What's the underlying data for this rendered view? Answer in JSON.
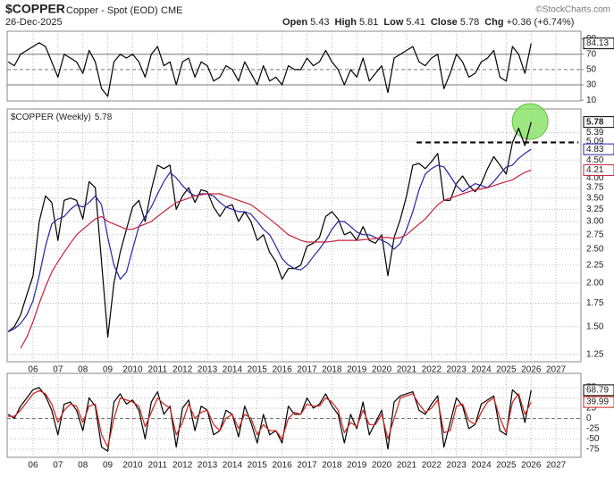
{
  "header": {
    "symbol": "$COPPER",
    "name": "Copper - Spot (EOD)",
    "exchange": "CME",
    "date": "26-Dec-2025",
    "quote": [
      {
        "label": "Open",
        "value": 5.43
      },
      {
        "label": "High",
        "value": 5.81
      },
      {
        "label": "Low",
        "value": 5.41
      },
      {
        "label": "Close",
        "value": 5.78
      },
      {
        "label": "Chg",
        "value": "+0.36 (+6.74%)"
      }
    ],
    "credit": "©StockCharts.com"
  },
  "chart_data": [
    {
      "type": "line",
      "x": [
        2005,
        2005.25,
        2005.5,
        2005.75,
        2006,
        2006.25,
        2006.5,
        2006.75,
        2007,
        2007.25,
        2007.5,
        2007.75,
        2008,
        2008.25,
        2008.5,
        2008.75,
        2009,
        2009.25,
        2009.5,
        2009.75,
        2010,
        2010.25,
        2010.5,
        2010.75,
        2011,
        2011.25,
        2011.5,
        2011.75,
        2012,
        2012.25,
        2012.5,
        2012.75,
        2013,
        2013.25,
        2013.5,
        2013.75,
        2014,
        2014.25,
        2014.5,
        2014.75,
        2015,
        2015.25,
        2015.5,
        2015.75,
        2016,
        2016.25,
        2016.5,
        2016.75,
        2017,
        2017.25,
        2017.5,
        2017.75,
        2018,
        2018.25,
        2018.5,
        2018.75,
        2019,
        2019.25,
        2019.5,
        2019.75,
        2020,
        2020.25,
        2020.5,
        2020.75,
        2021,
        2021.25,
        2021.5,
        2021.75,
        2022,
        2022.25,
        2022.5,
        2022.75,
        2023,
        2023.25,
        2023.5,
        2023.75,
        2024,
        2024.25,
        2024.5,
        2024.75,
        2025,
        2025.25,
        2025.5,
        2025.75,
        2026
      ],
      "series": [
        {
          "color": "#000000",
          "values": [
            60,
            55,
            70,
            75,
            80,
            85,
            80,
            60,
            40,
            70,
            65,
            60,
            45,
            75,
            60,
            25,
            15,
            60,
            70,
            65,
            70,
            60,
            40,
            70,
            80,
            55,
            60,
            30,
            60,
            65,
            40,
            60,
            55,
            35,
            40,
            55,
            50,
            35,
            60,
            45,
            30,
            55,
            35,
            40,
            30,
            55,
            50,
            50,
            65,
            55,
            60,
            75,
            60,
            50,
            30,
            50,
            40,
            65,
            35,
            45,
            55,
            20,
            65,
            70,
            75,
            80,
            60,
            55,
            65,
            70,
            25,
            45,
            70,
            60,
            40,
            45,
            60,
            65,
            75,
            40,
            35,
            80,
            70,
            45,
            84.13
          ]
        }
      ],
      "xlim": [
        2004.96,
        2028.0
      ],
      "xticks": [
        2006,
        2007,
        2008,
        2009,
        2010,
        2011,
        2012,
        2013,
        2014,
        2015,
        2016,
        2017,
        2018,
        2019,
        2020,
        2021,
        2022,
        2023,
        2024,
        2025,
        2026,
        2027
      ],
      "xtick_labels": false,
      "ylim": [
        9,
        100
      ],
      "yticks": [
        90,
        70,
        50,
        30,
        10
      ],
      "grid": false,
      "ref_lines": [
        {
          "value": 70,
          "style": "solid"
        },
        {
          "value": 50,
          "style": "dashed"
        },
        {
          "value": 30,
          "style": "solid"
        }
      ]
    },
    {
      "type": "line",
      "legend": "$COPPER (Weekly)",
      "log_scale": true,
      "x": [
        2005,
        2005.25,
        2005.5,
        2005.75,
        2006,
        2006.25,
        2006.5,
        2006.75,
        2007,
        2007.25,
        2007.5,
        2007.75,
        2008,
        2008.25,
        2008.5,
        2008.75,
        2009,
        2009.25,
        2009.5,
        2009.75,
        2010,
        2010.25,
        2010.5,
        2010.75,
        2011,
        2011.25,
        2011.5,
        2011.75,
        2012,
        2012.25,
        2012.5,
        2012.75,
        2013,
        2013.25,
        2013.5,
        2013.75,
        2014,
        2014.25,
        2014.5,
        2014.75,
        2015,
        2015.25,
        2015.5,
        2015.75,
        2016,
        2016.25,
        2016.5,
        2016.75,
        2017,
        2017.25,
        2017.5,
        2017.75,
        2018,
        2018.25,
        2018.5,
        2018.75,
        2019,
        2019.25,
        2019.5,
        2019.75,
        2020,
        2020.25,
        2020.5,
        2020.75,
        2021,
        2021.25,
        2021.5,
        2021.75,
        2022,
        2022.25,
        2022.5,
        2022.75,
        2023,
        2023.25,
        2023.5,
        2023.75,
        2024,
        2024.25,
        2024.5,
        2024.75,
        2025,
        2025.25,
        2025.5,
        2025.75,
        2026
      ],
      "series": [
        {
          "color": "#000000",
          "values": [
            1.45,
            1.5,
            1.62,
            1.85,
            2.1,
            3.0,
            3.55,
            3.4,
            2.65,
            3.45,
            3.5,
            3.45,
            3.05,
            3.9,
            3.75,
            2.3,
            1.4,
            2.0,
            2.45,
            2.85,
            3.3,
            3.45,
            3.0,
            3.7,
            4.35,
            4.25,
            4.35,
            3.25,
            3.55,
            3.75,
            3.4,
            3.7,
            3.65,
            3.3,
            3.1,
            3.3,
            3.35,
            3.0,
            3.2,
            3.0,
            2.65,
            2.75,
            2.45,
            2.3,
            2.05,
            2.2,
            2.2,
            2.25,
            2.55,
            2.6,
            2.7,
            3.1,
            3.2,
            3.05,
            2.75,
            2.8,
            2.65,
            2.9,
            2.65,
            2.6,
            2.75,
            2.1,
            2.7,
            3.05,
            3.55,
            4.35,
            4.4,
            4.25,
            4.45,
            4.7,
            3.45,
            3.45,
            3.85,
            4.05,
            3.8,
            3.65,
            3.85,
            4.25,
            4.6,
            4.35,
            4.1,
            5.05,
            5.55,
            4.95,
            5.78
          ]
        },
        {
          "color": "#2323a8",
          "values": [
            1.45,
            1.48,
            1.53,
            1.62,
            1.78,
            2.1,
            2.55,
            2.95,
            3.05,
            3.1,
            3.25,
            3.35,
            3.3,
            3.4,
            3.55,
            3.35,
            2.7,
            2.25,
            2.05,
            2.15,
            2.5,
            2.9,
            3.1,
            3.3,
            3.6,
            3.9,
            4.15,
            4.0,
            3.8,
            3.65,
            3.55,
            3.6,
            3.6,
            3.55,
            3.4,
            3.3,
            3.25,
            3.2,
            3.2,
            3.15,
            3.0,
            2.85,
            2.75,
            2.55,
            2.35,
            2.25,
            2.2,
            2.18,
            2.25,
            2.38,
            2.5,
            2.65,
            2.85,
            3.0,
            3.0,
            2.9,
            2.8,
            2.75,
            2.75,
            2.7,
            2.65,
            2.6,
            2.5,
            2.6,
            2.85,
            3.2,
            3.7,
            4.1,
            4.25,
            4.35,
            4.3,
            4.05,
            3.8,
            3.65,
            3.75,
            3.85,
            3.8,
            3.75,
            3.9,
            4.1,
            4.3,
            4.35,
            4.55,
            4.7,
            4.83
          ]
        },
        {
          "color": "#c8203a",
          "values": [
            null,
            null,
            1.3,
            1.4,
            1.55,
            1.75,
            1.95,
            2.15,
            2.3,
            2.45,
            2.6,
            2.75,
            2.85,
            2.95,
            3.05,
            3.1,
            3.0,
            2.95,
            2.9,
            2.85,
            2.85,
            2.9,
            2.95,
            3.0,
            3.1,
            3.2,
            3.3,
            3.4,
            3.45,
            3.5,
            3.55,
            3.58,
            3.6,
            3.6,
            3.6,
            3.55,
            3.5,
            3.45,
            3.4,
            3.35,
            3.25,
            3.15,
            3.05,
            2.95,
            2.85,
            2.75,
            2.7,
            2.65,
            2.62,
            2.62,
            2.62,
            2.62,
            2.63,
            2.65,
            2.65,
            2.65,
            2.65,
            2.66,
            2.67,
            2.68,
            2.7,
            2.7,
            2.68,
            2.7,
            2.75,
            2.85,
            2.95,
            3.05,
            3.2,
            3.35,
            3.45,
            3.5,
            3.55,
            3.6,
            3.65,
            3.7,
            3.72,
            3.75,
            3.8,
            3.85,
            3.9,
            3.95,
            4.05,
            4.15,
            4.21
          ]
        }
      ],
      "xlim": [
        2004.96,
        2028.0
      ],
      "xticks": [
        {
          "value": 2006,
          "label": "06"
        },
        {
          "value": 2007,
          "label": "07"
        },
        {
          "value": 2008,
          "label": "08"
        },
        {
          "value": 2009,
          "label": "09"
        },
        2010,
        2011,
        2012,
        2013,
        2014,
        2015,
        2016,
        2017,
        2018,
        2019,
        2020,
        2021,
        2022,
        2023,
        2024,
        2025,
        2026,
        2027
      ],
      "ylim": [
        1.19,
        6.3
      ],
      "yticks": [
        5.39,
        5.09,
        {
          "value": 4.5,
          "label": "4.50"
        },
        {
          "value": 4.0,
          "label": "4.00"
        },
        3.75,
        {
          "value": 3.5,
          "label": "3.50"
        },
        3.25,
        {
          "value": 3.0,
          "label": "3.00"
        },
        2.75,
        {
          "value": 2.5,
          "label": "2.50"
        },
        2.25,
        {
          "value": 2.0,
          "label": "2.00"
        },
        1.75,
        {
          "value": 1.5,
          "label": "1.50"
        },
        1.25
      ],
      "grid": true,
      "level": {
        "value": 5.05,
        "x": [
          2021.4,
          2027.9
        ]
      },
      "highlight": {
        "x": 2025.96,
        "y": 5.8,
        "color": "#7ee05a"
      }
    },
    {
      "type": "line",
      "x": [
        2005,
        2005.25,
        2005.5,
        2005.75,
        2006,
        2006.25,
        2006.5,
        2006.75,
        2007,
        2007.25,
        2007.5,
        2007.75,
        2008,
        2008.25,
        2008.5,
        2008.75,
        2009,
        2009.25,
        2009.5,
        2009.75,
        2010,
        2010.25,
        2010.5,
        2010.75,
        2011,
        2011.25,
        2011.5,
        2011.75,
        2012,
        2012.25,
        2012.5,
        2012.75,
        2013,
        2013.25,
        2013.5,
        2013.75,
        2014,
        2014.25,
        2014.5,
        2014.75,
        2015,
        2015.25,
        2015.5,
        2015.75,
        2016,
        2016.25,
        2016.5,
        2016.75,
        2017,
        2017.25,
        2017.5,
        2017.75,
        2018,
        2018.25,
        2018.5,
        2018.75,
        2019,
        2019.25,
        2019.5,
        2019.75,
        2020,
        2020.25,
        2020.5,
        2020.75,
        2021,
        2021.25,
        2021.5,
        2021.75,
        2022,
        2022.25,
        2022.5,
        2022.75,
        2023,
        2023.25,
        2023.5,
        2023.75,
        2024,
        2024.25,
        2024.5,
        2024.75,
        2025,
        2025.25,
        2025.5,
        2025.75,
        2026
      ],
      "series": [
        {
          "color": "#000000",
          "values": [
            10,
            0,
            30,
            50,
            70,
            75,
            55,
            20,
            -40,
            35,
            40,
            20,
            -30,
            50,
            30,
            -70,
            -80,
            40,
            60,
            35,
            45,
            20,
            -50,
            40,
            65,
            10,
            30,
            -70,
            25,
            45,
            -30,
            30,
            20,
            -40,
            -30,
            20,
            10,
            -45,
            30,
            -10,
            -60,
            10,
            -40,
            -30,
            -60,
            30,
            10,
            10,
            50,
            25,
            35,
            60,
            30,
            10,
            -60,
            10,
            -25,
            40,
            -40,
            -10,
            20,
            -75,
            40,
            55,
            60,
            65,
            20,
            10,
            35,
            55,
            -70,
            -10,
            50,
            30,
            -25,
            -15,
            35,
            45,
            55,
            -30,
            -40,
            70,
            55,
            -10,
            68.79
          ]
        },
        {
          "color": "#d0201c",
          "values": [
            5,
            5,
            20,
            40,
            60,
            68,
            60,
            35,
            -10,
            20,
            35,
            30,
            -10,
            30,
            35,
            -40,
            -70,
            0,
            50,
            45,
            40,
            30,
            -20,
            15,
            50,
            35,
            25,
            -40,
            -10,
            35,
            0,
            15,
            20,
            -15,
            -30,
            0,
            10,
            -25,
            10,
            0,
            -40,
            -15,
            -30,
            -30,
            -50,
            0,
            15,
            10,
            35,
            30,
            30,
            50,
            40,
            20,
            -35,
            -10,
            -20,
            20,
            -15,
            -15,
            10,
            -50,
            0,
            50,
            55,
            60,
            35,
            15,
            25,
            45,
            -35,
            -30,
            30,
            35,
            -5,
            -15,
            15,
            40,
            50,
            0,
            -35,
            40,
            60,
            10,
            39.99
          ]
        }
      ],
      "xlim": [
        2004.96,
        2028.0
      ],
      "xticks": [
        {
          "value": 2006,
          "label": "06"
        },
        {
          "value": 2007,
          "label": "07"
        },
        {
          "value": 2008,
          "label": "08"
        },
        {
          "value": 2009,
          "label": "09"
        },
        2010,
        2011,
        2012,
        2013,
        2014,
        2015,
        2016,
        2017,
        2018,
        2019,
        2020,
        2021,
        2022,
        2023,
        2024,
        2025,
        2026,
        2027
      ],
      "ylim": [
        -95,
        110
      ],
      "yticks": [
        75,
        50,
        25,
        0,
        -25,
        -50,
        -75
      ],
      "grid": true,
      "ref_lines": [
        {
          "value": 0,
          "style": "dashed"
        }
      ]
    }
  ]
}
